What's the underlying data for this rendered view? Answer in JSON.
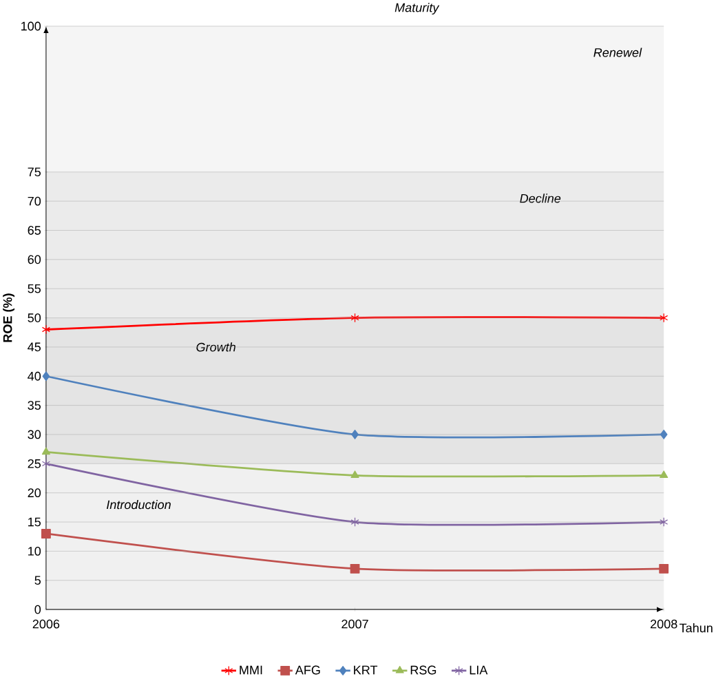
{
  "chart_data": {
    "type": "line",
    "xlabel": "Tahun",
    "ylabel": "ROE (%)",
    "categories": [
      "2006",
      "2007",
      "2008"
    ],
    "series": [
      {
        "name": "MMI",
        "color": "#ff0000",
        "values": [
          48,
          50,
          50
        ],
        "marker": "cross"
      },
      {
        "name": "AFG",
        "color": "#c0504d",
        "values": [
          13,
          7,
          7
        ],
        "marker": "square"
      },
      {
        "name": "KRT",
        "color": "#4f81bd",
        "values": [
          40,
          30,
          30
        ],
        "marker": "diamond"
      },
      {
        "name": "RSG",
        "color": "#9bbb59",
        "values": [
          27,
          23,
          23
        ],
        "marker": "triangle"
      },
      {
        "name": "LIA",
        "color": "#8064a2",
        "values": [
          25,
          15,
          15
        ],
        "marker": "cross"
      }
    ],
    "ylim": [
      0,
      100
    ],
    "yticks": [
      0,
      5,
      10,
      15,
      20,
      25,
      30,
      35,
      40,
      45,
      50,
      55,
      60,
      65,
      70,
      75,
      100
    ],
    "grid": "y",
    "legend": "bottom",
    "line_style": "solid",
    "bands": [
      {
        "axis": "y",
        "from": 0,
        "to": 25,
        "label": "Introduction",
        "color": "#f0f0f0"
      },
      {
        "axis": "y",
        "from": 25,
        "to": 50,
        "label": "Growth",
        "color": "#e4e4e4"
      },
      {
        "axis": "y",
        "from": 50,
        "to": 75,
        "label": "Decline",
        "color": "#ebebeb"
      },
      {
        "axis": "y",
        "from": 75,
        "to": 100,
        "label": "Renewel",
        "color": "#f5f5f5"
      }
    ],
    "annotations": [
      "Maturity"
    ]
  }
}
